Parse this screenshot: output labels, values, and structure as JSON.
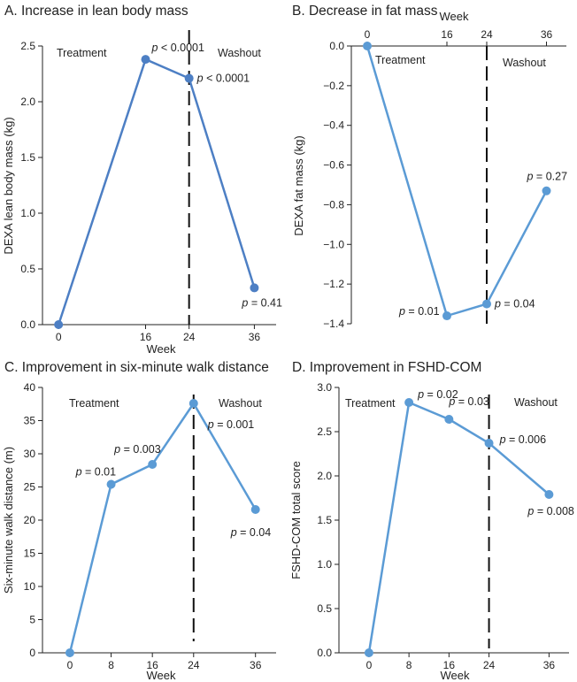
{
  "chart_data": [
    {
      "id": "A",
      "type": "line",
      "title": "A. Increase in lean body mass",
      "xlabel": "Week",
      "ylabel": "DEXA lean body mass (kg)",
      "x_ticks": [
        0,
        16,
        24,
        36
      ],
      "y_ticks": [
        "0.0",
        "0.5",
        "1.0",
        "1.5",
        "2.0",
        "2.5"
      ],
      "ylim": [
        0,
        2.5
      ],
      "xlim": [
        -8,
        40
      ],
      "x_axis_position": "bottom",
      "divider_week": 24,
      "region_labels": {
        "left": "Treatment",
        "right": "Washout"
      },
      "series": [
        {
          "name": "Lean body mass",
          "color": "#4d7fc4",
          "x": [
            0,
            16,
            24,
            36
          ],
          "y": [
            0.0,
            2.38,
            2.21,
            0.33
          ],
          "p_labels": [
            "",
            "p < 0.0001",
            "p < 0.0001",
            "p = 0.41"
          ]
        }
      ]
    },
    {
      "id": "B",
      "type": "line",
      "title": "B. Decrease in fat mass",
      "xlabel": "Week",
      "ylabel": "DEXA fat mass (kg)",
      "x_ticks": [
        0,
        16,
        24,
        36
      ],
      "y_ticks": [
        "0.0",
        "−0.2",
        "−0.4",
        "−0.6",
        "−0.8",
        "−1.0",
        "−1.2",
        "−1.4"
      ],
      "ylim": [
        -1.4,
        0
      ],
      "xlim": [
        -8,
        40
      ],
      "x_axis_position": "top",
      "divider_week": 24,
      "region_labels": {
        "left": "Treatment",
        "right": "Washout"
      },
      "series": [
        {
          "name": "Fat mass",
          "color": "#5b9bd5",
          "x": [
            0,
            16,
            24,
            36
          ],
          "y": [
            0.0,
            -1.36,
            -1.3,
            -0.73
          ],
          "p_labels": [
            "",
            "p = 0.01",
            "p = 0.04",
            "p = 0.27"
          ]
        }
      ]
    },
    {
      "id": "C",
      "type": "line",
      "title": "C. Improvement in six-minute walk distance",
      "xlabel": "Week",
      "ylabel": "Six-minute walk distance (m)",
      "x_ticks": [
        0,
        8,
        16,
        24,
        36
      ],
      "y_ticks": [
        "0",
        "5",
        "10",
        "15",
        "20",
        "25",
        "30",
        "35",
        "40"
      ],
      "ylim": [
        0,
        40
      ],
      "xlim": [
        -6,
        40
      ],
      "x_axis_position": "bottom",
      "divider_week": 24,
      "region_labels": {
        "left": "Treatment",
        "right": "Washout"
      },
      "series": [
        {
          "name": "Six-minute walk distance",
          "color": "#5b9bd5",
          "x": [
            0,
            8,
            16,
            24,
            36
          ],
          "y": [
            0,
            25.4,
            28.4,
            37.6,
            21.6
          ],
          "p_labels": [
            "",
            "p = 0.01",
            "p = 0.003",
            "p = 0.001",
            "p = 0.04"
          ]
        }
      ]
    },
    {
      "id": "D",
      "type": "line",
      "title": "D. Improvement in FSHD-COM",
      "xlabel": "Week",
      "ylabel": "FSHD-COM total score",
      "x_ticks": [
        0,
        8,
        16,
        24,
        36
      ],
      "y_ticks": [
        "0.0",
        "0.5",
        "1.0",
        "1.5",
        "2.0",
        "2.5",
        "3.0"
      ],
      "ylim": [
        0,
        3
      ],
      "xlim": [
        -6,
        40
      ],
      "x_axis_position": "bottom",
      "divider_week": 24,
      "region_labels": {
        "left": "Treatment",
        "right": "Washout"
      },
      "series": [
        {
          "name": "FSHD-COM total score",
          "color": "#5b9bd5",
          "x": [
            0,
            8,
            16,
            24,
            36
          ],
          "y": [
            0.0,
            2.83,
            2.64,
            2.37,
            1.79
          ],
          "p_labels": [
            "",
            "p = 0.02",
            "p = 0.03",
            "p = 0.006",
            "p = 0.008"
          ]
        }
      ]
    }
  ]
}
